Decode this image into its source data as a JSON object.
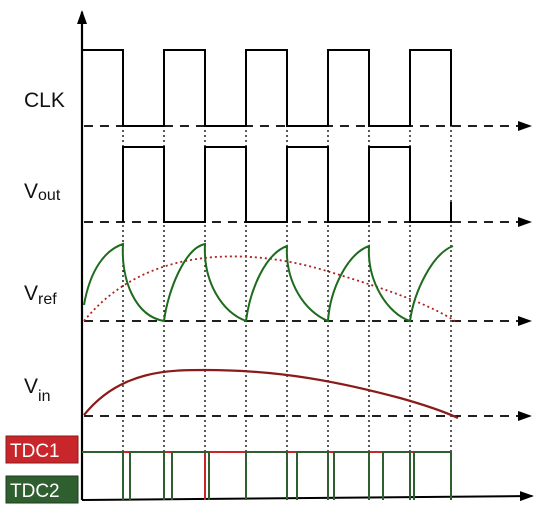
{
  "signals": {
    "clk": "CLK",
    "vout": {
      "main": "V",
      "sub": "out"
    },
    "vref": {
      "main": "V",
      "sub": "ref"
    },
    "vin": {
      "main": "V",
      "sub": "in"
    },
    "tdc1": "TDC1",
    "tdc2": "TDC2"
  },
  "colors": {
    "axis": "#000000",
    "digital": "#000000",
    "vref_curve": "#1e6b1e",
    "vin_curve": "#8b1a1a",
    "vin_dotted": "#b02020",
    "tdc1_box": "#c8262b",
    "tdc1_pulse": "#c8262b",
    "tdc2_box": "#2f5e2f",
    "tdc2_pulse": "#2f5e2f"
  },
  "clk_edges_count": 9
}
